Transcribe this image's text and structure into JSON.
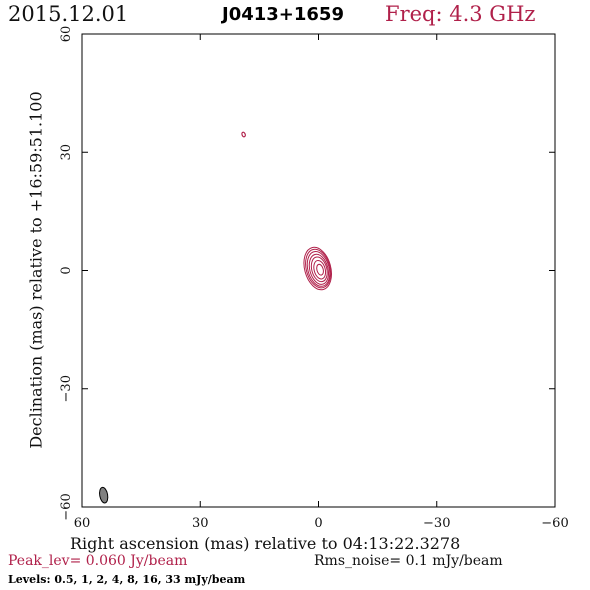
{
  "header": {
    "date": "2015.12.01",
    "source": "J0413+1659",
    "freq": "Freq: 4.3 GHz"
  },
  "footer": {
    "peak": "Peak_lev=  0.060 Jy/beam",
    "rms": "Rms_noise=  0.1 mJy/beam",
    "levels": "Levels: 0.5,   1,   2,   4,   8,  16,  33 mJy/beam"
  },
  "colors": {
    "contour": "#b0204a",
    "beam_fill": "#808080",
    "axis": "#000000"
  },
  "chart_data": {
    "type": "contour",
    "xlabel": "Right ascension (mas) relative to 04:13:22.3278",
    "ylabel": "Declination (mas) relative to +16:59:51.100",
    "xlim": [
      60,
      -60
    ],
    "ylim": [
      -60,
      60
    ],
    "xticks": [
      60,
      30,
      0,
      -30,
      -60
    ],
    "yticks": [
      -60,
      -30,
      0,
      30,
      60
    ],
    "xtick_labels": [
      "60",
      "30",
      "0",
      "−30",
      "−60"
    ],
    "ytick_labels": [
      "−60",
      "−30",
      "0",
      "30",
      "60"
    ],
    "levels_mJy": [
      0.5,
      1,
      2,
      4,
      8,
      16,
      33
    ],
    "peak_Jy_per_beam": 0.06,
    "rms_mJy_per_beam": 0.1,
    "core": {
      "x": 0,
      "y": 0.5
    },
    "core_contours": [
      {
        "level": 0.5,
        "rx": 3.3,
        "ry": 5.5,
        "cx": 0.2,
        "cy": 0.5,
        "angle": -15
      },
      {
        "level": 1,
        "rx": 3.0,
        "ry": 5.0,
        "cx": 0.1,
        "cy": 0.5,
        "angle": -15
      },
      {
        "level": 2,
        "rx": 2.7,
        "ry": 4.5,
        "cx": 0.0,
        "cy": 0.4,
        "angle": -15
      },
      {
        "level": 4,
        "rx": 2.3,
        "ry": 3.9,
        "cx": -0.1,
        "cy": 0.3,
        "angle": -15
      },
      {
        "level": 8,
        "rx": 1.9,
        "ry": 3.2,
        "cx": -0.2,
        "cy": 0.3,
        "angle": -15
      },
      {
        "level": 16,
        "rx": 1.4,
        "ry": 2.4,
        "cx": -0.3,
        "cy": 0.2,
        "angle": -15
      },
      {
        "level": 33,
        "rx": 0.8,
        "ry": 1.4,
        "cx": -0.4,
        "cy": 0.2,
        "angle": -15
      }
    ],
    "knots": [
      {
        "x": 19,
        "y": 34.5,
        "rx": 0.4,
        "ry": 0.6,
        "angle": -20
      }
    ],
    "beam": {
      "x": 54.5,
      "y": -57,
      "rx": 1.0,
      "ry": 2.0,
      "angle": -10
    }
  }
}
